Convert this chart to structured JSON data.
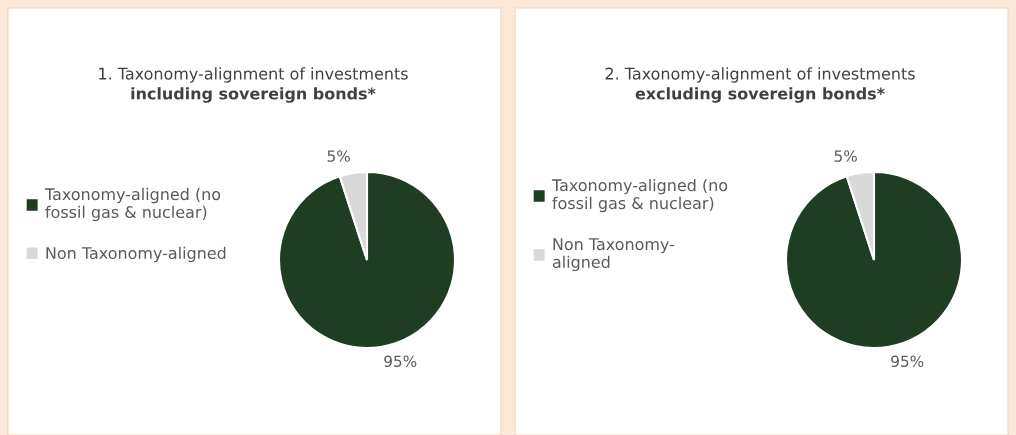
{
  "chart_data": [
    {
      "type": "pie",
      "title": "1. Taxonomy-alignment of investments",
      "subtitle": "including sovereign bonds*",
      "categories": [
        "Taxonomy-aligned (no\nfossil gas & nuclear)",
        "Non Taxonomy-aligned"
      ],
      "values": [
        95,
        5
      ],
      "colors": [
        "#1e3d23",
        "#d9d9d9"
      ],
      "value_labels": [
        "95%",
        "5%"
      ],
      "legend": "left"
    },
    {
      "type": "pie",
      "title": "2. Taxonomy-alignment of investments",
      "subtitle": "excluding sovereign bonds*",
      "categories": [
        "Taxonomy-aligned (no\nfossil gas & nuclear)",
        "Non Taxonomy-\naligned"
      ],
      "values": [
        95,
        5
      ],
      "colors": [
        "#1e3d23",
        "#d9d9d9"
      ],
      "value_labels": [
        "95%",
        "5%"
      ],
      "legend": "left"
    }
  ]
}
